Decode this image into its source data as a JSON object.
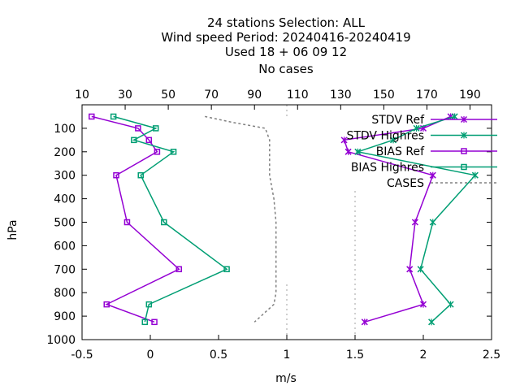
{
  "chart_data": {
    "type": "line",
    "title_lines": [
      "24 stations Selection: ALL",
      "Wind speed  Period: 20240416-20240419",
      "Used  18 + 06 09 12",
      "No cases"
    ],
    "xlabel": "m/s",
    "ylabel": "hPa",
    "xlim": [
      -0.5,
      2.5
    ],
    "ylim": [
      1000,
      0
    ],
    "x_ticks": [
      -0.5,
      0,
      0.5,
      1,
      1.5,
      2,
      2.5
    ],
    "x_tick_labels": [
      "-0.5",
      "0",
      "0.5",
      "1",
      "1.5",
      "2",
      "2.5"
    ],
    "y_ticks": [
      100,
      200,
      300,
      400,
      500,
      600,
      700,
      800,
      900,
      1000
    ],
    "y_tick_labels": [
      "100",
      "200",
      "300",
      "400",
      "500",
      "600",
      "700",
      "800",
      "900",
      "1000"
    ],
    "x2lim": [
      10,
      200
    ],
    "x2_ticks": [
      10,
      30,
      50,
      70,
      90,
      110,
      130,
      150,
      170,
      190
    ],
    "x2_tick_labels": [
      "10",
      "30",
      "50",
      "70",
      "90",
      "110",
      "130",
      "150",
      "170",
      "190"
    ],
    "legend_position": "top-right",
    "series": [
      {
        "name": "STDV Ref",
        "color": "#9400d3",
        "marker": "x",
        "dash": "solid",
        "axis": "x1",
        "points": [
          [
            2.2,
            50
          ],
          [
            2.0,
            100
          ],
          [
            1.42,
            150
          ],
          [
            1.45,
            200
          ],
          [
            2.07,
            300
          ],
          [
            1.94,
            500
          ],
          [
            1.9,
            700
          ],
          [
            2.0,
            850
          ],
          [
            1.57,
            925
          ]
        ]
      },
      {
        "name": "STDV Highres",
        "color": "#009e73",
        "marker": "x",
        "dash": "solid",
        "axis": "x1",
        "points": [
          [
            2.23,
            50
          ],
          [
            1.95,
            100
          ],
          [
            1.78,
            150
          ],
          [
            1.52,
            200
          ],
          [
            2.38,
            300
          ],
          [
            2.07,
            500
          ],
          [
            1.98,
            700
          ],
          [
            2.2,
            850
          ],
          [
            2.06,
            925
          ]
        ]
      },
      {
        "name": "BIAS Ref",
        "color": "#9400d3",
        "marker": "square",
        "dash": "solid",
        "axis": "x1",
        "points": [
          [
            -0.43,
            50
          ],
          [
            -0.09,
            100
          ],
          [
            -0.01,
            150
          ],
          [
            0.05,
            200
          ],
          [
            -0.25,
            300
          ],
          [
            -0.17,
            500
          ],
          [
            0.21,
            700
          ],
          [
            -0.32,
            850
          ],
          [
            0.03,
            925
          ]
        ]
      },
      {
        "name": "BIAS Highres",
        "color": "#009e73",
        "marker": "square",
        "dash": "solid",
        "axis": "x1",
        "points": [
          [
            -0.27,
            50
          ],
          [
            0.04,
            100
          ],
          [
            -0.12,
            150
          ],
          [
            0.17,
            200
          ],
          [
            -0.07,
            300
          ],
          [
            0.1,
            500
          ],
          [
            0.56,
            700
          ],
          [
            -0.01,
            850
          ],
          [
            -0.04,
            925
          ]
        ]
      },
      {
        "name": "CASES",
        "color": "#808080",
        "marker": "none",
        "dash": "dashed",
        "axis": "x2",
        "points": [
          [
            67,
            50
          ],
          [
            80,
            75
          ],
          [
            95,
            100
          ],
          [
            97,
            150
          ],
          [
            97,
            200
          ],
          [
            97,
            300
          ],
          [
            99,
            400
          ],
          [
            100,
            500
          ],
          [
            100,
            600
          ],
          [
            100,
            700
          ],
          [
            100,
            800
          ],
          [
            99,
            850
          ],
          [
            93,
            900
          ],
          [
            90,
            925
          ]
        ]
      }
    ]
  }
}
